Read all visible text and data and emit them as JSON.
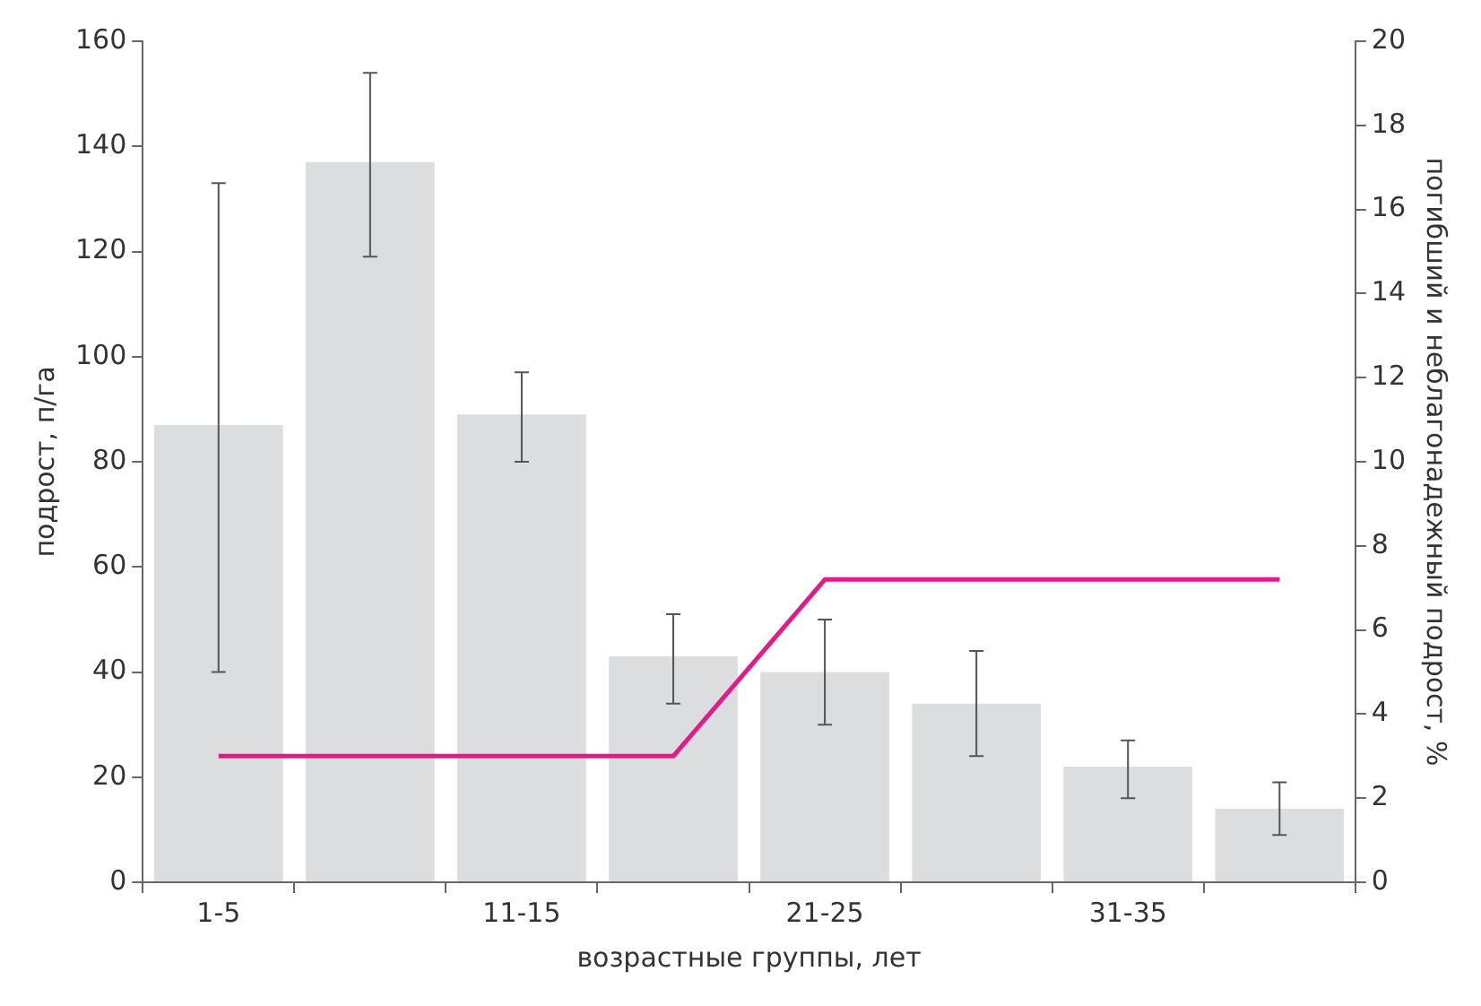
{
  "chart_data": {
    "type": "bar",
    "xlabel": "возрастные группы, лет",
    "ylabel": "подрост, п/га",
    "y2label": "погибший и неблагонадежный подрост, %",
    "categories": [
      "1-5",
      null,
      "11-15",
      null,
      "21-25",
      null,
      "31-35",
      null
    ],
    "series": [
      {
        "color": "#dcdddf",
        "values": [
          87,
          137,
          89,
          43,
          40,
          34,
          22,
          14
        ],
        "errors": [
          [
            40,
            133
          ],
          [
            119,
            154
          ],
          [
            80,
            97
          ],
          [
            34,
            51
          ],
          [
            30,
            50
          ],
          [
            24,
            44
          ],
          [
            16,
            27
          ],
          [
            9,
            19
          ]
        ]
      },
      {
        "type": "line",
        "axis": "y2",
        "color": "#e5198a",
        "values": [
          3,
          3,
          3,
          3,
          7.2,
          7.2,
          7.2,
          7.2
        ]
      }
    ],
    "ylim": [
      0,
      160
    ],
    "yticks": [
      0,
      20,
      40,
      60,
      80,
      100,
      120,
      140,
      160
    ],
    "y2lim": [
      0,
      20
    ],
    "y2ticks": [
      0,
      2,
      4,
      6,
      8,
      10,
      12,
      14,
      16,
      18,
      20
    ],
    "marker": "none"
  }
}
